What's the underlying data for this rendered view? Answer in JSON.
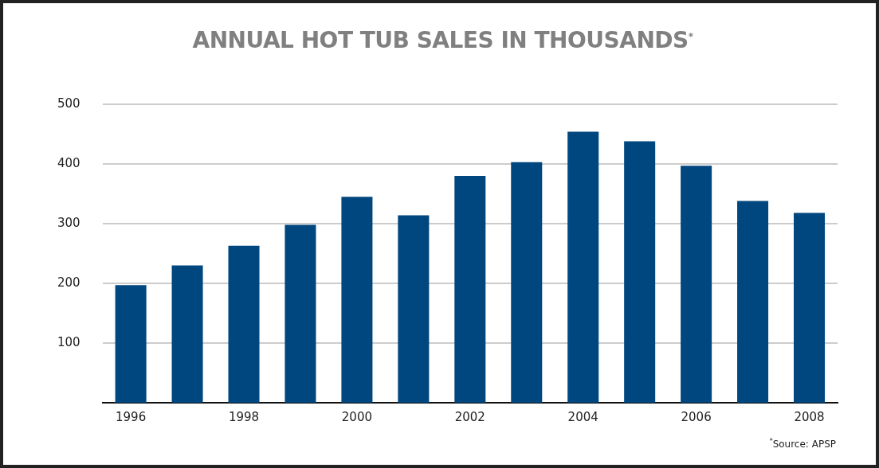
{
  "chart_data": {
    "type": "bar",
    "title": "ANNUAL HOT TUB SALES IN THOUSANDS$^{*}$",
    "categories": [
      "1996",
      null,
      "1998",
      null,
      "2000",
      null,
      "2002",
      null,
      "2004",
      null,
      "2006",
      null,
      "2008"
    ],
    "values": [
      197,
      230,
      263,
      298,
      345,
      314,
      380,
      403,
      454,
      438,
      397,
      338,
      318
    ],
    "color": "#00467f",
    "ylim": [
      0,
      500
    ],
    "yticks": [
      100,
      200,
      300,
      400,
      500
    ],
    "grid": "y",
    "annotations": [
      "$^{*}$Source: APSP"
    ]
  }
}
